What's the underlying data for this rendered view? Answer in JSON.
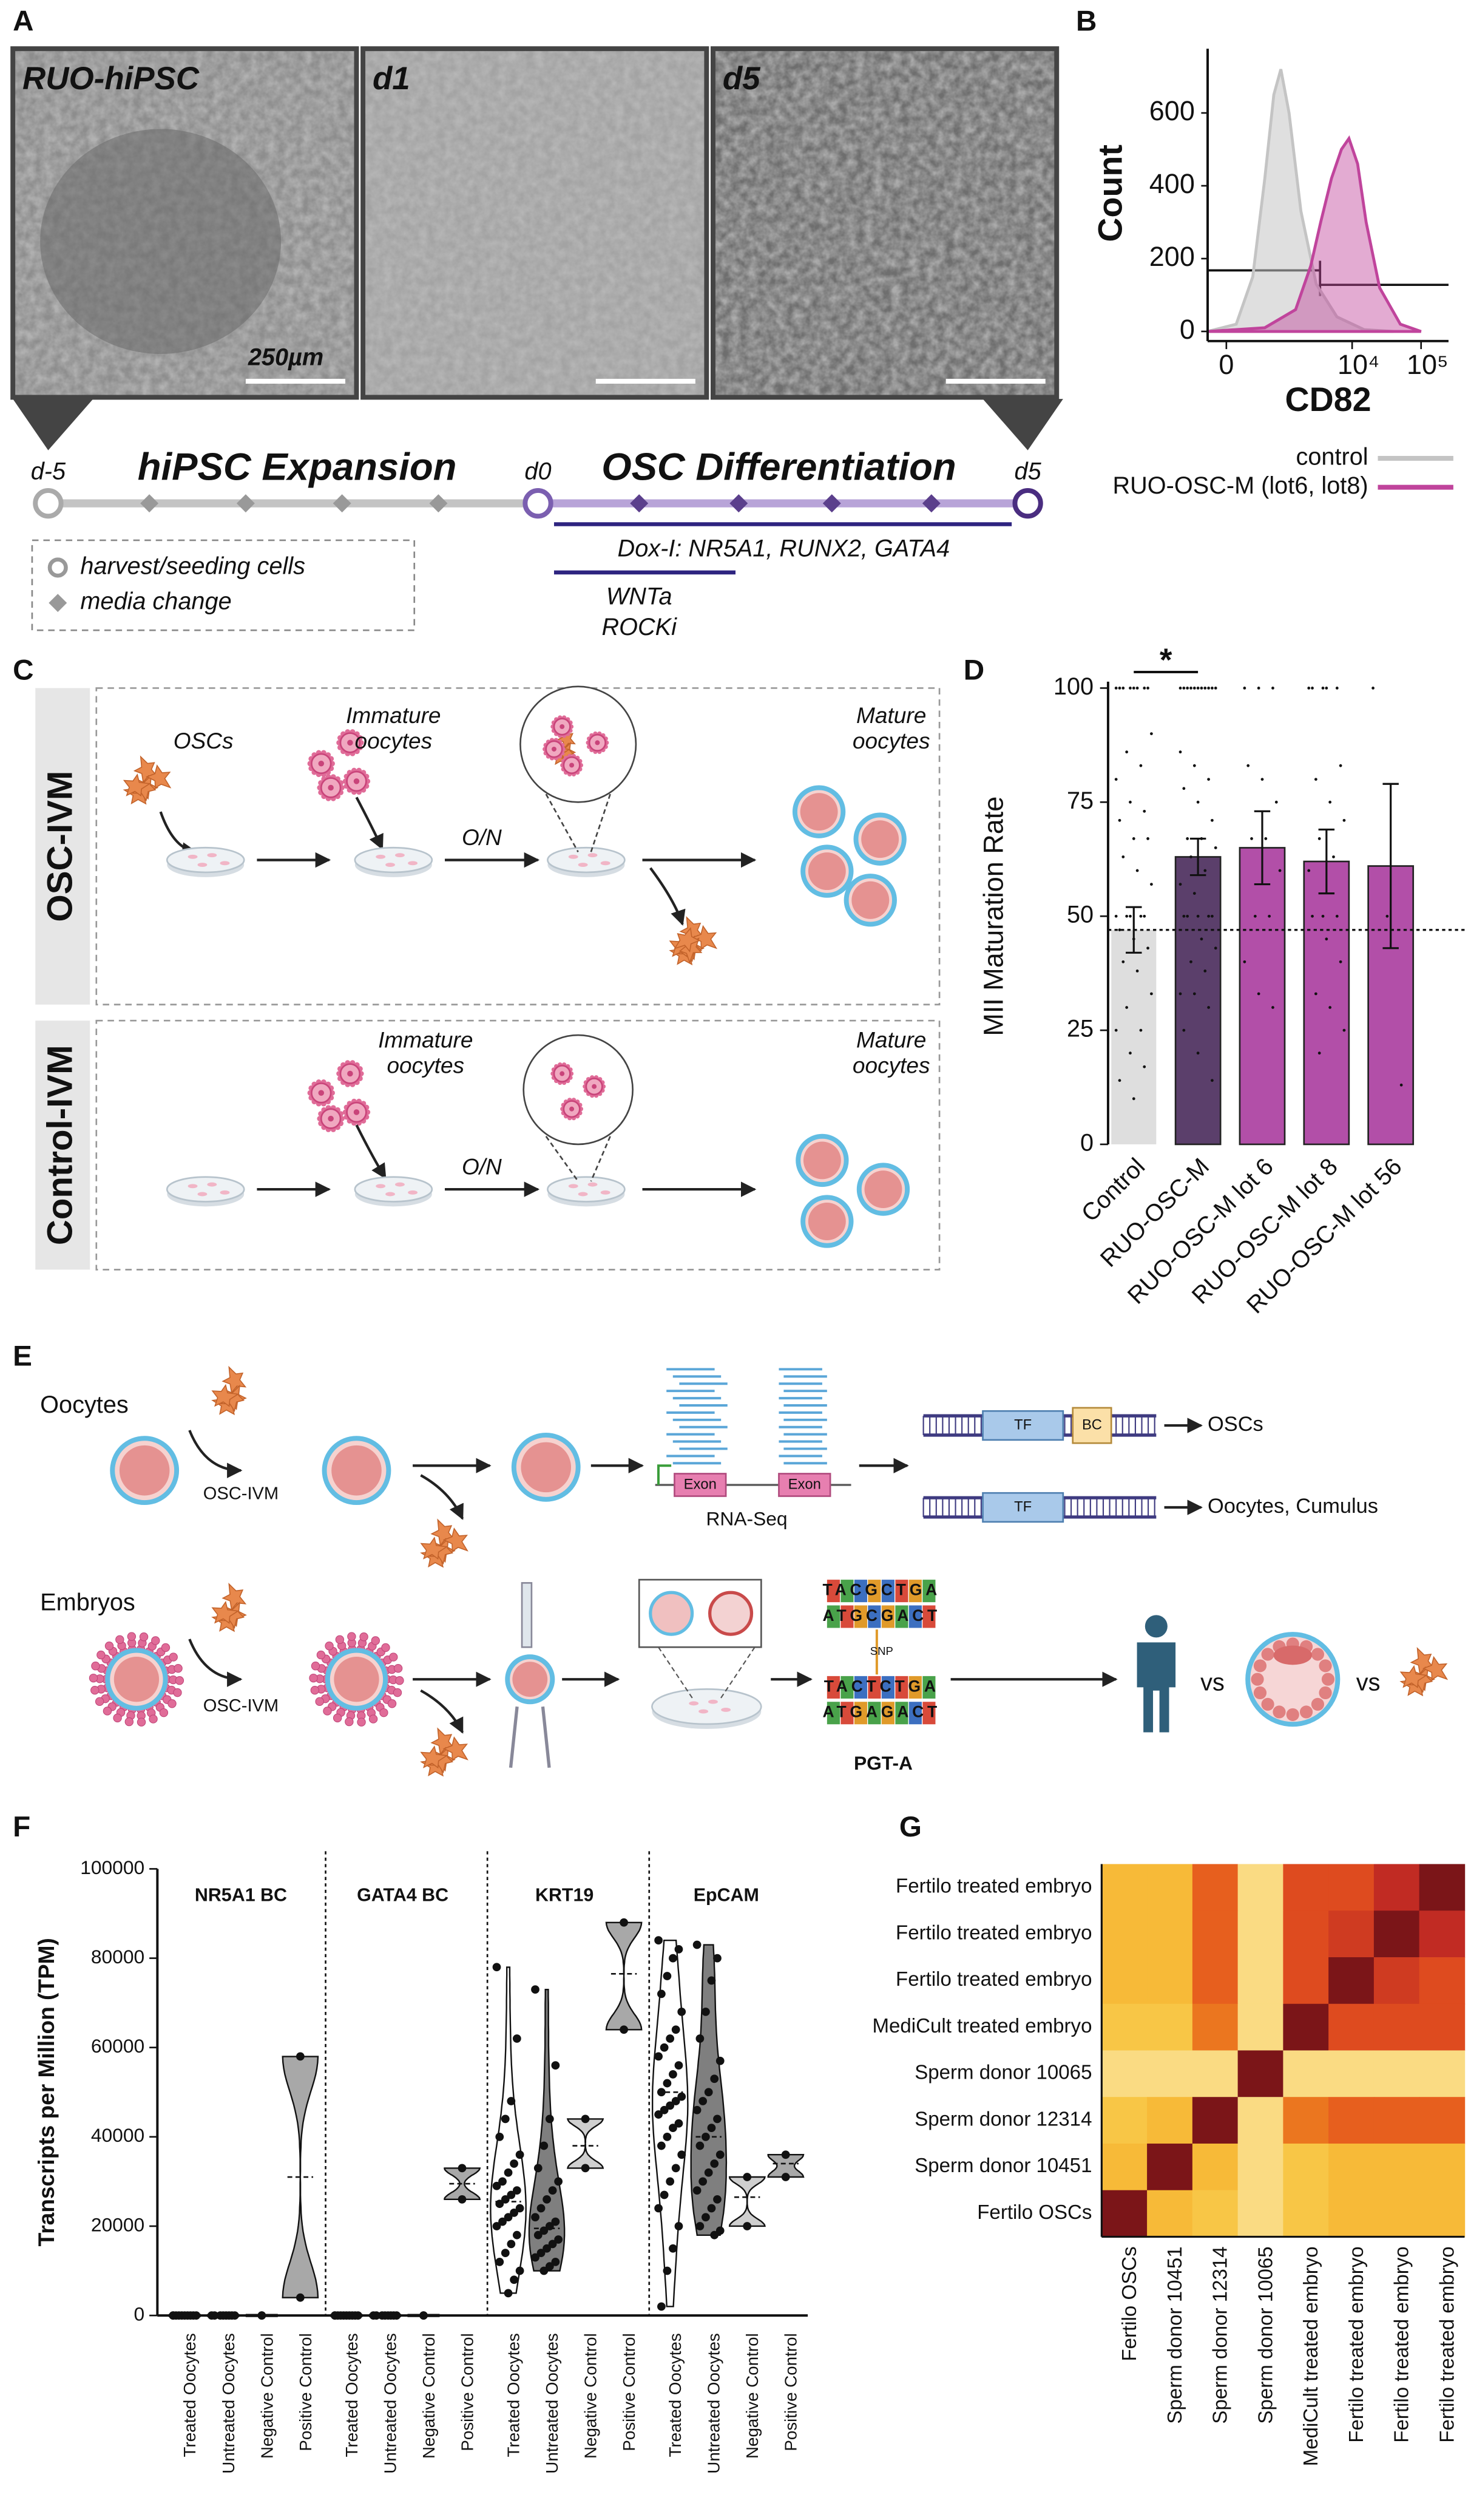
{
  "panel_labels": [
    "A",
    "B",
    "C",
    "D",
    "E",
    "F",
    "G"
  ],
  "panel_a": {
    "images": [
      "RUO-hiPSC",
      "d1",
      "d5"
    ],
    "scale_bar": "250µm",
    "timepoints": [
      "d-5",
      "d0",
      "d5"
    ],
    "phases": [
      "hiPSC Expansion",
      "OSC Differentiation"
    ],
    "treatments": [
      "Dox-I: NR5A1, RUNX2, GATA4",
      "WNTa",
      "ROCKi"
    ],
    "legend": [
      "harvest/seeding cells",
      "media change"
    ]
  },
  "panel_c": {
    "rows": [
      {
        "title": "OSC-IVM",
        "cells": "OSCs",
        "immature": [
          "Immature",
          "oocytes"
        ],
        "overnight": "O/N",
        "mature": [
          "Mature",
          "oocytes"
        ]
      },
      {
        "title": "Control-IVM",
        "immature": [
          "Immature",
          "oocytes"
        ],
        "overnight": "O/N",
        "mature": [
          "Mature",
          "oocytes"
        ]
      }
    ]
  },
  "panel_e": {
    "rows": [
      {
        "title": "Oocytes",
        "treatment": "OSC-IVM",
        "exons": [
          "Exon",
          "Exon"
        ],
        "assay": "RNA-Seq",
        "constructs": [
          {
            "tf": "TF",
            "bc": "BC",
            "target": "OSCs"
          },
          {
            "tf": "TF",
            "target": "Oocytes, Cumulus"
          }
        ]
      },
      {
        "title": "Embryos",
        "treatment": "OSC-IVM",
        "snp": "SNP",
        "sequences": [
          "TACGCTGA",
          "ATGCGACT",
          "TACTCTGA",
          "ATGAGACT"
        ],
        "assay": "PGT-A",
        "comparisons": [
          "vs",
          "vs"
        ]
      }
    ]
  },
  "chart_data": [
    {
      "type": "area",
      "xlabel": "CD82",
      "ylabel": "Count",
      "xscale": "biexponential",
      "xlim": [
        -200,
        250000
      ],
      "xticks": [
        0,
        {
          "value": 10000,
          "label": "10⁴"
        },
        {
          "value": 100000,
          "label": "10⁵"
        }
      ],
      "ylim": [
        0,
        750
      ],
      "yticks": [
        0,
        200,
        400,
        600
      ],
      "legend": "bottom",
      "series": [
        {
          "name": "control",
          "color": "#c4c4c4",
          "x": [
            -200,
            100,
            300,
            500,
            700,
            900,
            1200,
            1800,
            3000,
            6000,
            15000,
            40000
          ],
          "values": [
            0,
            20,
            150,
            420,
            650,
            720,
            600,
            330,
            130,
            40,
            5,
            0
          ]
        },
        {
          "name": "RUO-OSC-M (lot6, lot8)",
          "color": "#c0449c",
          "x": [
            -200,
            500,
            1500,
            2500,
            3500,
            5000,
            7000,
            9000,
            12000,
            16000,
            25000,
            50000,
            100000
          ],
          "values": [
            0,
            10,
            60,
            180,
            300,
            420,
            500,
            530,
            460,
            300,
            120,
            20,
            0
          ]
        }
      ]
    },
    {
      "type": "bar",
      "ylabel": "MII Maturation Rate",
      "categories": [
        "Control",
        "RUO-OSC-M",
        "RUO-OSC-M lot 6",
        "RUO-OSC-M lot 8",
        "RUO-OSC-M lot 56"
      ],
      "values": [
        47,
        63,
        65,
        62,
        61
      ],
      "errors": [
        5,
        4,
        8,
        7,
        18
      ],
      "colors": [
        "#dedede",
        "#5b3f6b",
        "#b24fa8",
        "#b24fa8",
        "#b24fa8"
      ],
      "points": [
        [
          100,
          100,
          100,
          100,
          100,
          100,
          100,
          100,
          90,
          86,
          83,
          80,
          75,
          73,
          71,
          67,
          67,
          63,
          60,
          57,
          50,
          50,
          50,
          50,
          50,
          47,
          45,
          43,
          40,
          38,
          33,
          30,
          25,
          25,
          20,
          17,
          14,
          10
        ],
        [
          100,
          100,
          100,
          100,
          100,
          100,
          100,
          100,
          100,
          100,
          100,
          86,
          83,
          80,
          78,
          75,
          71,
          67,
          67,
          65,
          63,
          60,
          57,
          55,
          50,
          50,
          50,
          50,
          50,
          45,
          43,
          40,
          38,
          33,
          33,
          30,
          25,
          20,
          14
        ],
        [
          100,
          100,
          100,
          83,
          80,
          75,
          67,
          67,
          60,
          50,
          50,
          40,
          33,
          30
        ],
        [
          100,
          100,
          100,
          100,
          100,
          83,
          80,
          75,
          71,
          67,
          63,
          60,
          50,
          50,
          50,
          45,
          40,
          33,
          30,
          25,
          20
        ],
        [
          100,
          50,
          13
        ]
      ],
      "reference_line": 47,
      "annotation": "*",
      "ylim": [
        0,
        100
      ],
      "yticks": [
        0,
        25,
        50,
        75,
        100
      ]
    },
    {
      "type": "violin",
      "ylabel": "Transcripts per Million (TPM)",
      "ylim": [
        0,
        100000
      ],
      "yticks": [
        0,
        20000,
        40000,
        60000,
        80000,
        100000
      ],
      "categories": [
        "Treated Oocytes",
        "Untreated Oocytes",
        "Negative Control",
        "Positive Control"
      ],
      "colors": [
        "#ffffff",
        "#7f7f7f",
        "#cfcfcf",
        "#a8a8a8"
      ],
      "facets": [
        {
          "name": "NR5A1 BC",
          "groups": [
            {
              "values": [
                0,
                0,
                0,
                0,
                0,
                0,
                0,
                0,
                0,
                0
              ],
              "median": 0
            },
            {
              "values": [
                0,
                0,
                0,
                0,
                0,
                0,
                0,
                0
              ],
              "median": 0
            },
            {
              "values": [
                0,
                0
              ],
              "median": 0
            },
            {
              "values": [
                4000,
                58000
              ],
              "median": 31000
            }
          ]
        },
        {
          "name": "GATA4 BC",
          "groups": [
            {
              "values": [
                0,
                0,
                0,
                0,
                0,
                0,
                0,
                0,
                0,
                0
              ],
              "median": 0
            },
            {
              "values": [
                0,
                0,
                0,
                0,
                0,
                0,
                0,
                0
              ],
              "median": 0
            },
            {
              "values": [
                0,
                0
              ],
              "median": 0
            },
            {
              "values": [
                26000,
                33000
              ],
              "median": 29500
            }
          ]
        },
        {
          "name": "KRT19",
          "groups": [
            {
              "values": [
                78000,
                62000,
                48000,
                44000,
                40000,
                36000,
                34000,
                32000,
                30000,
                29000,
                28000,
                27000,
                26000,
                25000,
                24000,
                23000,
                22000,
                21000,
                20000,
                18000,
                16000,
                14000,
                12000,
                10000,
                8000,
                5000
              ],
              "median": 25500
            },
            {
              "values": [
                73000,
                56000,
                44000,
                38000,
                33000,
                30000,
                28000,
                26000,
                24000,
                22000,
                21000,
                20000,
                19000,
                18000,
                17000,
                16000,
                15000,
                14000,
                13000,
                12000,
                11000,
                10000
              ],
              "median": 19500
            },
            {
              "values": [
                33000,
                44000
              ],
              "median": 38000
            },
            {
              "values": [
                64000,
                88000
              ],
              "median": 76500
            }
          ]
        },
        {
          "name": "EpCAM",
          "groups": [
            {
              "values": [
                84000,
                82000,
                80000,
                76000,
                72000,
                68000,
                64000,
                62000,
                60000,
                58000,
                56000,
                54000,
                52000,
                50000,
                49000,
                48000,
                47000,
                46000,
                45000,
                43000,
                42000,
                40000,
                38000,
                36000,
                33000,
                30000,
                27000,
                24000,
                20000,
                15000,
                10000,
                2000
              ],
              "median": 50000
            },
            {
              "values": [
                83000,
                80000,
                75000,
                68000,
                62000,
                57000,
                53000,
                50000,
                48000,
                46000,
                44000,
                42000,
                40000,
                38000,
                36000,
                34000,
                32000,
                30000,
                28000,
                26000,
                24000,
                22000,
                20000,
                19000,
                18000
              ],
              "median": 40000
            },
            {
              "values": [
                20000,
                31000
              ],
              "median": 26500
            },
            {
              "values": [
                31000,
                36000
              ],
              "median": 34000
            }
          ]
        }
      ]
    },
    {
      "type": "heatmap",
      "rows": [
        "Fertilo treated embryo",
        "Fertilo treated embryo",
        "Fertilo treated embryo",
        "MediCult treated embryo",
        "Sperm donor 10065",
        "Sperm donor 12314",
        "Sperm donor 10451",
        "Fertilo OSCs"
      ],
      "columns": [
        "Fertilo OSCs",
        "Sperm donor 10451",
        "Sperm donor 12314",
        "Sperm donor 10065",
        "MediCult treated embryo",
        "Fertilo treated embryo",
        "Fertilo treated embryo",
        "Fertilo treated embryo"
      ],
      "values": [
        [
          0.4,
          0.4,
          0.65,
          0.25,
          0.7,
          0.7,
          0.8,
          1.0
        ],
        [
          0.4,
          0.4,
          0.65,
          0.25,
          0.7,
          0.75,
          1.0,
          0.8
        ],
        [
          0.4,
          0.4,
          0.65,
          0.25,
          0.7,
          1.0,
          0.75,
          0.7
        ],
        [
          0.35,
          0.35,
          0.6,
          0.25,
          1.0,
          0.7,
          0.7,
          0.7
        ],
        [
          0.25,
          0.25,
          0.25,
          1.0,
          0.25,
          0.25,
          0.25,
          0.25
        ],
        [
          0.35,
          0.4,
          1.0,
          0.25,
          0.6,
          0.65,
          0.65,
          0.65
        ],
        [
          0.4,
          1.0,
          0.4,
          0.25,
          0.35,
          0.4,
          0.4,
          0.4
        ],
        [
          1.0,
          0.4,
          0.35,
          0.25,
          0.35,
          0.4,
          0.4,
          0.4
        ]
      ],
      "zlim": [
        0.2,
        1
      ],
      "color_scale": [
        "#fbe6a2",
        "#f8c440",
        "#f29a1f",
        "#e4511e",
        "#b51f24",
        "#7b1518"
      ]
    }
  ]
}
